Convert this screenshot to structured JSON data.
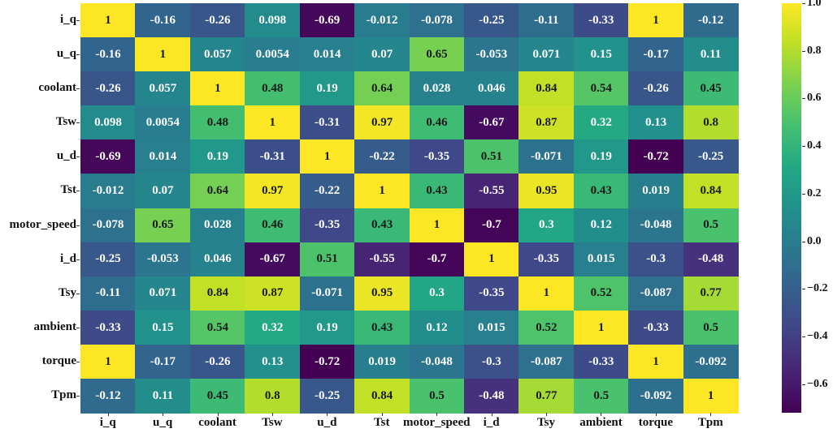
{
  "chart_data": {
    "type": "heatmap",
    "title": "",
    "xlabel": "",
    "ylabel": "",
    "labels": [
      "i_q",
      "u_q",
      "coolant",
      "Tsw",
      "u_d",
      "Tst",
      "motor_speed",
      "i_d",
      "Tsy",
      "ambient",
      "torque",
      "Tpm"
    ],
    "matrix": [
      [
        "1",
        "-0.16",
        "-0.26",
        "0.098",
        "-0.69",
        "-0.012",
        "-0.078",
        "-0.25",
        "-0.11",
        "-0.33",
        "1",
        "-0.12"
      ],
      [
        "-0.16",
        "1",
        "0.057",
        "0.0054",
        "0.014",
        "0.07",
        "0.65",
        "-0.053",
        "0.071",
        "0.15",
        "-0.17",
        "0.11"
      ],
      [
        "-0.26",
        "0.057",
        "1",
        "0.48",
        "0.19",
        "0.64",
        "0.028",
        "0.046",
        "0.84",
        "0.54",
        "-0.26",
        "0.45"
      ],
      [
        "0.098",
        "0.0054",
        "0.48",
        "1",
        "-0.31",
        "0.97",
        "0.46",
        "-0.67",
        "0.87",
        "0.32",
        "0.13",
        "0.8"
      ],
      [
        "-0.69",
        "0.014",
        "0.19",
        "-0.31",
        "1",
        "-0.22",
        "-0.35",
        "0.51",
        "-0.071",
        "0.19",
        "-0.72",
        "-0.25"
      ],
      [
        "-0.012",
        "0.07",
        "0.64",
        "0.97",
        "-0.22",
        "1",
        "0.43",
        "-0.55",
        "0.95",
        "0.43",
        "0.019",
        "0.84"
      ],
      [
        "-0.078",
        "0.65",
        "0.028",
        "0.46",
        "-0.35",
        "0.43",
        "1",
        "-0.7",
        "0.3",
        "0.12",
        "-0.048",
        "0.5"
      ],
      [
        "-0.25",
        "-0.053",
        "0.046",
        "-0.67",
        "0.51",
        "-0.55",
        "-0.7",
        "1",
        "-0.35",
        "0.015",
        "-0.3",
        "-0.48"
      ],
      [
        "-0.11",
        "0.071",
        "0.84",
        "0.87",
        "-0.071",
        "0.95",
        "0.3",
        "-0.35",
        "1",
        "0.52",
        "-0.087",
        "0.77"
      ],
      [
        "-0.33",
        "0.15",
        "0.54",
        "0.32",
        "0.19",
        "0.43",
        "0.12",
        "0.015",
        "0.52",
        "1",
        "-0.33",
        "0.5"
      ],
      [
        "1",
        "-0.17",
        "-0.26",
        "0.13",
        "-0.72",
        "0.019",
        "-0.048",
        "-0.3",
        "-0.087",
        "-0.33",
        "1",
        "-0.092"
      ],
      [
        "-0.12",
        "0.11",
        "0.45",
        "0.8",
        "-0.25",
        "0.84",
        "0.5",
        "-0.48",
        "0.77",
        "0.5",
        "-0.092",
        "1"
      ]
    ],
    "colormap": "viridis",
    "vmin": -0.72,
    "vmax": 1.0,
    "colorbar": {
      "ticks": [
        "1.0",
        "0.8",
        "0.6",
        "0.4",
        "0.2",
        "0.0",
        "−0.2",
        "−0.4",
        "−0.6"
      ],
      "tick_values": [
        1.0,
        0.8,
        0.6,
        0.4,
        0.2,
        0.0,
        -0.2,
        -0.4,
        -0.6
      ],
      "position": "right"
    },
    "annotations": true,
    "grid": false
  }
}
